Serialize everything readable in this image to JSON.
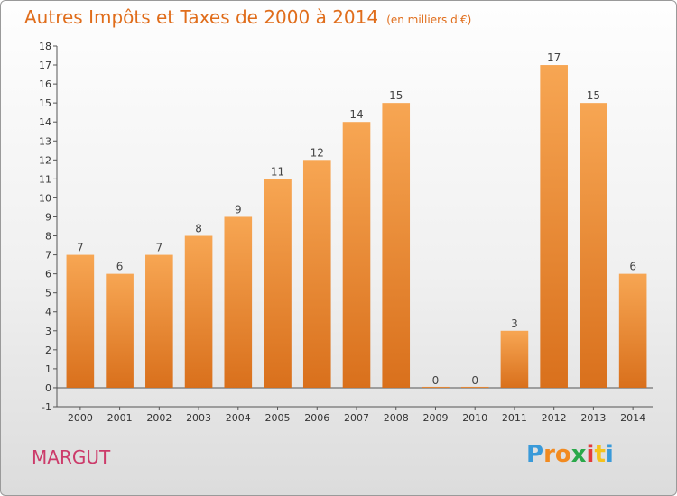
{
  "title": "Autres Impôts et Taxes de 2000 à 2014",
  "unit": "(en milliers d'€)",
  "commune": "MARGUT",
  "logo": {
    "letters": [
      "P",
      "r",
      "o",
      "x",
      "i",
      "t",
      "i"
    ],
    "colors": [
      "#3a9ad9",
      "#f28a1f",
      "#f28a1f",
      "#2aa84a",
      "#e33b3b",
      "#f5c21b",
      "#3a9ad9"
    ]
  },
  "colors": {
    "bar_top": "#f7a653",
    "bar_bottom": "#d9701c",
    "title": "#e06d1b",
    "commune": "#cc3b6a"
  },
  "chart_data": {
    "type": "bar",
    "categories": [
      "2000",
      "2001",
      "2002",
      "2003",
      "2004",
      "2005",
      "2006",
      "2007",
      "2008",
      "2009",
      "2010",
      "2011",
      "2012",
      "2013",
      "2014"
    ],
    "values": [
      7,
      6,
      7,
      8,
      9,
      11,
      12,
      14,
      15,
      0,
      0,
      3,
      17,
      15,
      6
    ],
    "ylim": [
      -1,
      18
    ],
    "yticks": [
      -1,
      0,
      1,
      2,
      3,
      4,
      5,
      6,
      7,
      8,
      9,
      10,
      11,
      12,
      13,
      14,
      15,
      16,
      17,
      18
    ],
    "grid": false,
    "xlabel": "",
    "ylabel": ""
  }
}
